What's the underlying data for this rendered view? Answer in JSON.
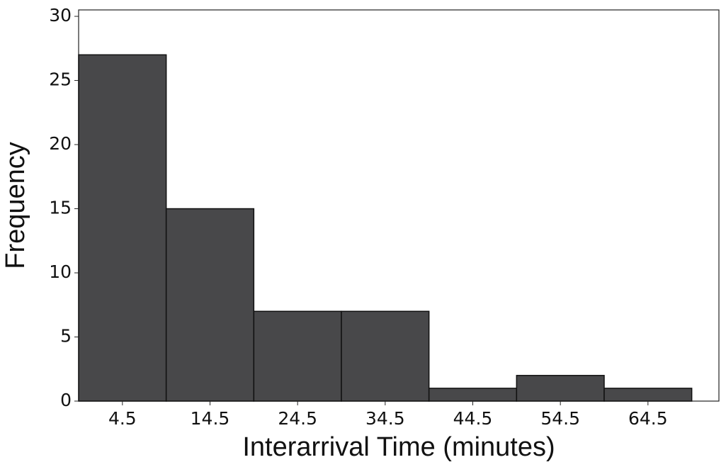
{
  "chart_data": {
    "type": "histogram",
    "x_label": "Interarrival Time (minutes)",
    "y_label": "Frequency",
    "bins": [
      -0.5,
      9.5,
      19.5,
      29.5,
      39.5,
      49.5,
      59.5,
      69.5
    ],
    "counts": [
      27,
      15,
      7,
      7,
      1,
      2,
      1
    ],
    "color": "#48484a",
    "xlim": [
      -0.5,
      72.6
    ],
    "xticks": [
      4.5,
      14.5,
      24.5,
      34.5,
      44.5,
      54.5,
      64.5
    ],
    "ylim": [
      0,
      30.5
    ],
    "yticks": [
      0,
      5,
      10,
      15,
      20,
      25,
      30
    ]
  }
}
